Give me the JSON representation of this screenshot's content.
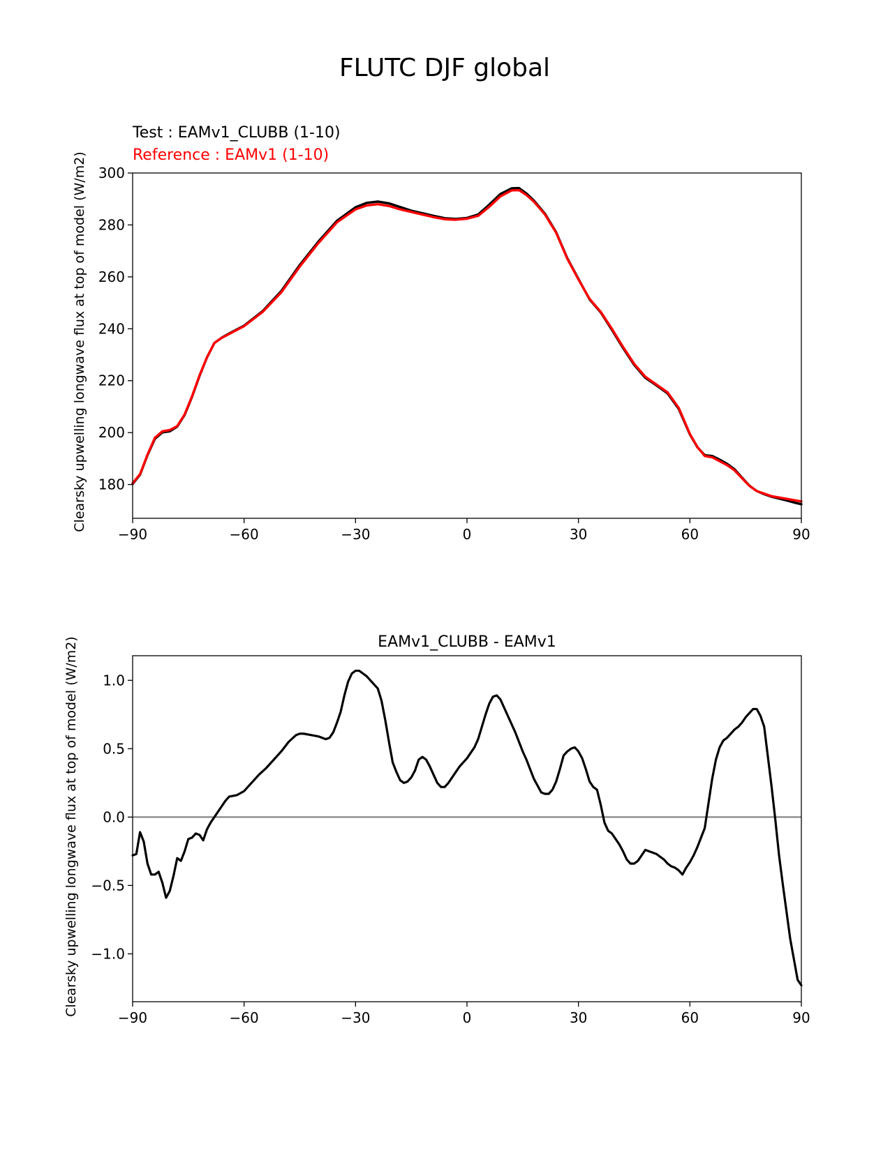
{
  "figure": {
    "suptitle": "FLUTC DJF global"
  },
  "chart_data": [
    {
      "type": "line",
      "test_label": "Test : EAMv1_CLUBB (1-10)",
      "reference_label": "Reference : EAMv1 (1-10)",
      "xlabel": "",
      "ylabel": "Clearsky upwelling longwave flux at top of model (W/m2)",
      "xlim": [
        -90,
        90
      ],
      "ylim": [
        167,
        300
      ],
      "xticks": [
        -90,
        -60,
        -30,
        0,
        30,
        60,
        90
      ],
      "xtick_labels": [
        "−90",
        "−60",
        "−30",
        "0",
        "30",
        "60",
        "90"
      ],
      "yticks": [
        180,
        200,
        220,
        240,
        260,
        280,
        300
      ],
      "ytick_labels": [
        "180",
        "200",
        "220",
        "240",
        "260",
        "280",
        "300"
      ],
      "series": [
        {
          "name": "Reference : EAMv1 (1-10)",
          "color": "#ff0000",
          "x": [
            -90,
            -88,
            -86,
            -84,
            -82,
            -80,
            -78,
            -76,
            -74,
            -72,
            -70,
            -68,
            -66,
            -64,
            -62,
            -60,
            -55,
            -50,
            -45,
            -40,
            -35,
            -30,
            -27,
            -24,
            -21,
            -18,
            -15,
            -12,
            -9,
            -6,
            -3,
            0,
            3,
            6,
            9,
            12,
            14,
            16,
            18,
            21,
            24,
            27,
            30,
            33,
            36,
            39,
            42,
            45,
            48,
            51,
            54,
            57,
            60,
            62,
            64,
            66,
            68,
            70,
            72,
            74,
            76,
            78,
            80,
            82,
            84,
            86,
            88,
            90
          ],
          "values": [
            180.5,
            184,
            191.5,
            198,
            200.5,
            201,
            202.5,
            207,
            214,
            222,
            229,
            234.5,
            236.5,
            238,
            239.5,
            241,
            246.5,
            254,
            264,
            273,
            281,
            286,
            287.5,
            288,
            287.3,
            286,
            285,
            284,
            283,
            282.2,
            282,
            282.4,
            283.5,
            287,
            291,
            293.3,
            293.4,
            291.5,
            289,
            284,
            277,
            267,
            259,
            251.5,
            246.5,
            240,
            233,
            226.5,
            221.5,
            218.5,
            215.5,
            209.5,
            199.5,
            194.5,
            191,
            190.5,
            189,
            187.5,
            185.5,
            182.5,
            179.5,
            177.5,
            176.5,
            175.5,
            175,
            174.5,
            174,
            173.5
          ]
        },
        {
          "name": "Test : EAMv1_CLUBB (1-10)",
          "color": "#000000",
          "x": [
            -90,
            -88,
            -86,
            -84,
            -82,
            -80,
            -78,
            -76,
            -74,
            -72,
            -70,
            -68,
            -66,
            -64,
            -62,
            -60,
            -55,
            -50,
            -45,
            -40,
            -35,
            -30,
            -27,
            -24,
            -21,
            -18,
            -15,
            -12,
            -9,
            -6,
            -3,
            0,
            3,
            6,
            9,
            12,
            14,
            16,
            18,
            21,
            24,
            27,
            30,
            33,
            36,
            39,
            42,
            45,
            48,
            51,
            54,
            57,
            60,
            62,
            64,
            66,
            68,
            70,
            72,
            74,
            76,
            78,
            80,
            82,
            84,
            86,
            88,
            90
          ],
          "values": [
            180.2,
            183.8,
            191.3,
            197.6,
            200.1,
            200.5,
            202.3,
            206.8,
            213.8,
            221.8,
            228.9,
            234.5,
            236.6,
            238.2,
            239.7,
            241.2,
            246.8,
            254.5,
            264.6,
            273.6,
            281.6,
            286.8,
            288.5,
            289,
            288.3,
            286.9,
            285.5,
            284.5,
            283.5,
            282.6,
            282.3,
            282.7,
            284,
            287.8,
            291.9,
            294.1,
            294.2,
            292.1,
            289.4,
            284.3,
            277.2,
            267.2,
            259.2,
            251.3,
            246.3,
            239.6,
            232.6,
            226.1,
            221.1,
            218.2,
            215.1,
            209.1,
            199.3,
            194.4,
            191.3,
            191,
            189.6,
            188,
            185.9,
            182.7,
            179.6,
            177.5,
            176.3,
            175.3,
            174.6,
            173.9,
            173.1,
            172.4
          ]
        }
      ]
    },
    {
      "type": "line",
      "title": "EAMv1_CLUBB - EAMv1",
      "xlabel": "",
      "ylabel": "Clearsky upwelling longwave flux at top of model (W/m2)",
      "xlim": [
        -90,
        90
      ],
      "ylim": [
        -1.35,
        1.18
      ],
      "xticks": [
        -90,
        -60,
        -30,
        0,
        30,
        60,
        90
      ],
      "xtick_labels": [
        "−90",
        "−60",
        "−30",
        "0",
        "30",
        "60",
        "90"
      ],
      "yticks": [
        -1.0,
        -0.5,
        0.0,
        0.5,
        1.0
      ],
      "ytick_labels": [
        "−1.0",
        "−0.5",
        "0.0",
        "0.5",
        "1.0"
      ],
      "zero_line": {
        "y": 0.0,
        "color": "#808080"
      },
      "series": [
        {
          "name": "EAMv1_CLUBB - EAMv1",
          "color": "#000000",
          "x": [
            -90,
            -89,
            -88,
            -87,
            -86,
            -85,
            -84,
            -83,
            -82,
            -81,
            -80,
            -79,
            -78,
            -77,
            -76,
            -75,
            -74,
            -73,
            -72,
            -71,
            -70,
            -69,
            -68,
            -67,
            -66,
            -65,
            -64,
            -62,
            -60,
            -58,
            -56,
            -54,
            -52,
            -50,
            -48,
            -46,
            -45,
            -44,
            -42,
            -40,
            -38,
            -37,
            -36,
            -35,
            -34,
            -33,
            -32,
            -31,
            -30,
            -29,
            -28,
            -27,
            -26,
            -25,
            -24,
            -23,
            -22,
            -21,
            -20,
            -19,
            -18,
            -17,
            -16,
            -15,
            -14,
            -13,
            -12,
            -11,
            -10,
            -9,
            -8,
            -7,
            -6,
            -5,
            -4,
            -3,
            -2,
            -1,
            0,
            1,
            2,
            3,
            4,
            5,
            6,
            7,
            8,
            9,
            10,
            11,
            12,
            13,
            14,
            15,
            16,
            17,
            18,
            19,
            20,
            21,
            22,
            23,
            24,
            25,
            26,
            27,
            28,
            29,
            30,
            31,
            32,
            33,
            34,
            35,
            36,
            37,
            38,
            39,
            40,
            41,
            42,
            43,
            44,
            45,
            46,
            47,
            48,
            49,
            50,
            51,
            52,
            53,
            54,
            55,
            56,
            57,
            58,
            59,
            60,
            61,
            62,
            63,
            64,
            65,
            66,
            67,
            68,
            69,
            70,
            71,
            72,
            73,
            74,
            75,
            76,
            77,
            78,
            79,
            80,
            81,
            82,
            83,
            84,
            85,
            86,
            87,
            88,
            89,
            90
          ],
          "values": [
            -0.28,
            -0.27,
            -0.11,
            -0.18,
            -0.34,
            -0.42,
            -0.42,
            -0.4,
            -0.48,
            -0.59,
            -0.54,
            -0.43,
            -0.3,
            -0.32,
            -0.25,
            -0.16,
            -0.15,
            -0.12,
            -0.13,
            -0.17,
            -0.09,
            -0.04,
            0.0,
            0.04,
            0.08,
            0.12,
            0.15,
            0.16,
            0.19,
            0.25,
            0.31,
            0.36,
            0.42,
            0.48,
            0.55,
            0.6,
            0.61,
            0.61,
            0.6,
            0.59,
            0.57,
            0.58,
            0.62,
            0.69,
            0.77,
            0.89,
            0.99,
            1.05,
            1.07,
            1.07,
            1.05,
            1.03,
            1.0,
            0.97,
            0.94,
            0.85,
            0.71,
            0.55,
            0.4,
            0.33,
            0.27,
            0.25,
            0.26,
            0.29,
            0.34,
            0.42,
            0.44,
            0.42,
            0.37,
            0.31,
            0.25,
            0.22,
            0.22,
            0.25,
            0.29,
            0.33,
            0.37,
            0.4,
            0.43,
            0.47,
            0.51,
            0.57,
            0.66,
            0.75,
            0.83,
            0.88,
            0.89,
            0.86,
            0.8,
            0.74,
            0.68,
            0.62,
            0.55,
            0.48,
            0.42,
            0.35,
            0.28,
            0.23,
            0.18,
            0.17,
            0.17,
            0.2,
            0.26,
            0.35,
            0.45,
            0.48,
            0.5,
            0.51,
            0.48,
            0.43,
            0.35,
            0.26,
            0.22,
            0.2,
            0.09,
            -0.04,
            -0.1,
            -0.12,
            -0.16,
            -0.2,
            -0.25,
            -0.31,
            -0.34,
            -0.34,
            -0.32,
            -0.28,
            -0.24,
            -0.25,
            -0.26,
            -0.27,
            -0.29,
            -0.31,
            -0.34,
            -0.36,
            -0.37,
            -0.39,
            -0.42,
            -0.37,
            -0.33,
            -0.28,
            -0.22,
            -0.15,
            -0.08,
            0.1,
            0.28,
            0.42,
            0.51,
            0.56,
            0.58,
            0.61,
            0.64,
            0.66,
            0.69,
            0.73,
            0.76,
            0.79,
            0.79,
            0.74,
            0.66,
            0.44,
            0.22,
            -0.02,
            -0.28,
            -0.49,
            -0.69,
            -0.89,
            -1.04,
            -1.19,
            -1.23
          ]
        }
      ]
    }
  ]
}
